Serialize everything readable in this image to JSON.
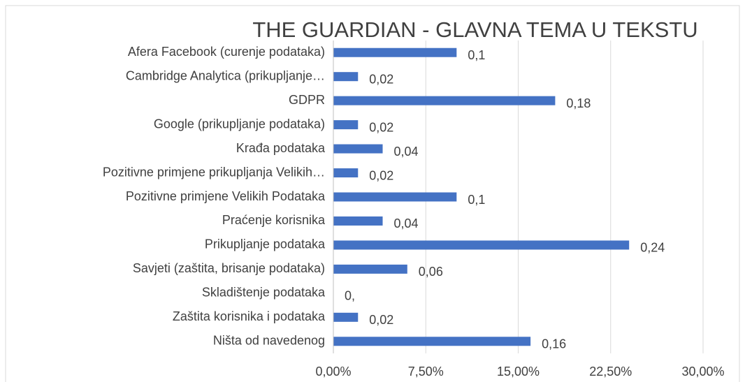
{
  "chart_data": {
    "type": "hbar",
    "title": "THE GUARDIAN - GLAVNA TEMA U TEKSTU",
    "categories": [
      "Afera Facebook (curenje podataka)",
      "Cambridge Analytica (prikupljanje…",
      "GDPR",
      "Google (prikupljanje podataka)",
      "Krađa podataka",
      "Pozitivne primjene prikupljanja Velikih…",
      "Pozitivne primjene Velikih Podataka",
      "Praćenje korisnika",
      "Prikupljanje podataka",
      "Savjeti (zaštita, brisanje podataka)",
      "Skladištenje podataka",
      "Zaštita korisnika i podataka",
      "Ništa od navedenog"
    ],
    "values": [
      0.1,
      0.02,
      0.18,
      0.02,
      0.04,
      0.02,
      0.1,
      0.04,
      0.24,
      0.06,
      0,
      0.02,
      0.16
    ],
    "value_labels": [
      "0,1",
      "0,02",
      "0,18",
      "0,02",
      "0,04",
      "0,02",
      "0,1",
      "0,04",
      "0,24",
      "0,06",
      "0,",
      "0,02",
      "0,16"
    ],
    "color": "#4472c4",
    "xlim": [
      0,
      0.3
    ],
    "xticks": [
      {
        "value": 0,
        "label": "0,00%"
      },
      {
        "value": 0.075,
        "label": "7,50%"
      },
      {
        "value": 0.15,
        "label": "15,00%"
      },
      {
        "value": 0.225,
        "label": "22,50%"
      },
      {
        "value": 0.3,
        "label": "30,00%"
      }
    ],
    "grid": true
  }
}
